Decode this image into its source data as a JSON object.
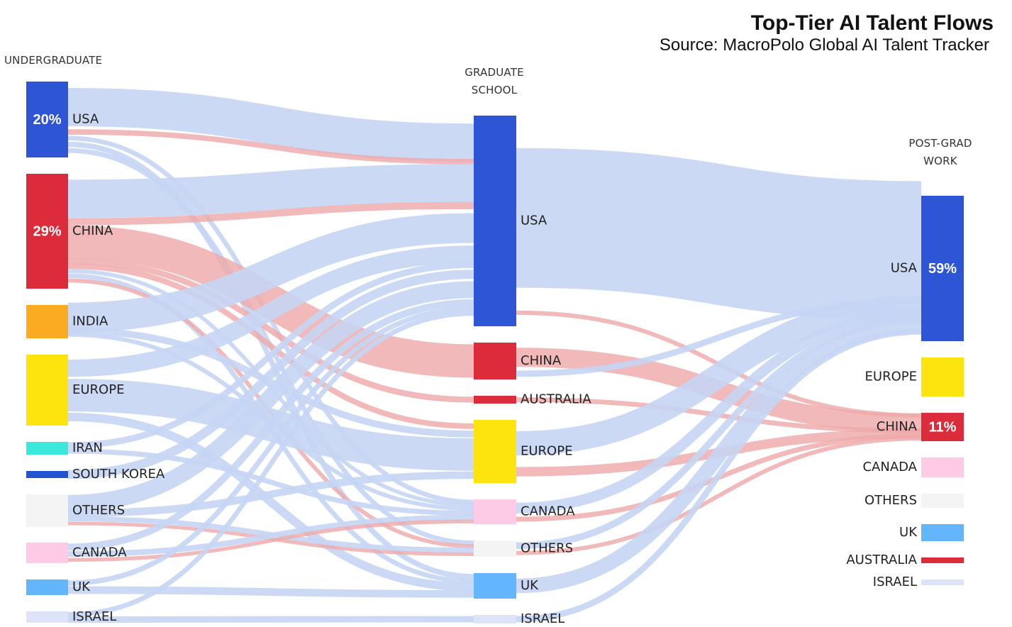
{
  "title": "Top-Tier AI Talent Flows",
  "subtitle": "Source: MacroPolo Global AI Talent Tracker",
  "columns": {
    "undergrad": "UNDERGRADUATE",
    "grad_line1": "GRADUATE",
    "grad_line2": "SCHOOL",
    "work_line1": "POST-GRAD",
    "work_line2": "WORK"
  },
  "colors": {
    "usa": "#2d55d6",
    "china": "#dc2c3c",
    "india": "#fbab22",
    "europe": "#fde40e",
    "iran": "#3ae8dc",
    "south_korea": "#2353d0",
    "others": "#f4f4f4",
    "canada": "#fdcbe6",
    "uk": "#63b6fb",
    "israel": "#dde4f8",
    "australia": "#dc2c3c",
    "flow_general": "#c5d5f4",
    "flow_china": "#eeaaaa"
  },
  "undergraduate": [
    {
      "id": "u_usa",
      "label": "USA",
      "pct": "20%",
      "color": "usa"
    },
    {
      "id": "u_china",
      "label": "CHINA",
      "pct": "29%",
      "color": "china"
    },
    {
      "id": "u_india",
      "label": "INDIA",
      "pct": "",
      "color": "india"
    },
    {
      "id": "u_europe",
      "label": "EUROPE",
      "pct": "",
      "color": "europe"
    },
    {
      "id": "u_iran",
      "label": "IRAN",
      "pct": "",
      "color": "iran"
    },
    {
      "id": "u_skorea",
      "label": "SOUTH KOREA",
      "pct": "",
      "color": "south_korea"
    },
    {
      "id": "u_others",
      "label": "OTHERS",
      "pct": "",
      "color": "others"
    },
    {
      "id": "u_canada",
      "label": "CANADA",
      "pct": "",
      "color": "canada"
    },
    {
      "id": "u_uk",
      "label": "UK",
      "pct": "",
      "color": "uk"
    },
    {
      "id": "u_israel",
      "label": "ISRAEL",
      "pct": "",
      "color": "israel"
    }
  ],
  "graduate_school": [
    {
      "id": "g_usa",
      "label": "USA",
      "color": "usa"
    },
    {
      "id": "g_china",
      "label": "CHINA",
      "color": "china"
    },
    {
      "id": "g_australia",
      "label": "AUSTRALIA",
      "color": "australia"
    },
    {
      "id": "g_europe",
      "label": "EUROPE",
      "color": "europe"
    },
    {
      "id": "g_canada",
      "label": "CANADA",
      "color": "canada"
    },
    {
      "id": "g_others",
      "label": "OTHERS",
      "color": "others"
    },
    {
      "id": "g_uk",
      "label": "UK",
      "color": "uk"
    },
    {
      "id": "g_israel",
      "label": "ISRAEL",
      "color": "israel"
    }
  ],
  "post_grad_work": [
    {
      "id": "w_usa",
      "label": "USA",
      "pct": "59%",
      "color": "usa"
    },
    {
      "id": "w_europe",
      "label": "EUROPE",
      "pct": "",
      "color": "europe"
    },
    {
      "id": "w_china",
      "label": "CHINA",
      "pct": "11%",
      "color": "china"
    },
    {
      "id": "w_canada",
      "label": "CANADA",
      "pct": "",
      "color": "canada"
    },
    {
      "id": "w_others",
      "label": "OTHERS",
      "pct": "",
      "color": "others"
    },
    {
      "id": "w_uk",
      "label": "UK",
      "pct": "",
      "color": "uk"
    },
    {
      "id": "w_australia",
      "label": "AUSTRALIA",
      "pct": "",
      "color": "australia"
    },
    {
      "id": "w_israel",
      "label": "ISRAEL",
      "pct": "",
      "color": "israel"
    }
  ],
  "flows": [
    {
      "from": "u_usa",
      "to": "g_usa",
      "weight": 14,
      "color": "flow_general"
    },
    {
      "from": "u_usa",
      "to": "g_usa",
      "weight": 2,
      "color": "flow_china"
    },
    {
      "from": "u_usa",
      "to": "g_canada",
      "weight": 2,
      "color": "flow_general"
    },
    {
      "from": "u_usa",
      "to": "g_uk",
      "weight": 2,
      "color": "flow_general"
    },
    {
      "from": "u_usa",
      "to": "g_others",
      "weight": 2,
      "color": "flow_general"
    },
    {
      "from": "u_china",
      "to": "g_usa",
      "weight": 16,
      "color": "flow_general"
    },
    {
      "from": "u_china",
      "to": "g_usa",
      "weight": 3,
      "color": "flow_china"
    },
    {
      "from": "u_china",
      "to": "g_china",
      "weight": 14,
      "color": "flow_china"
    },
    {
      "from": "u_china",
      "to": "g_australia",
      "weight": 2,
      "color": "flow_china"
    },
    {
      "from": "u_china",
      "to": "g_europe",
      "weight": 2,
      "color": "flow_china"
    },
    {
      "from": "u_china",
      "to": "g_canada",
      "weight": 2,
      "color": "flow_general"
    },
    {
      "from": "u_china",
      "to": "g_uk",
      "weight": 2,
      "color": "flow_general"
    },
    {
      "from": "u_china",
      "to": "g_others",
      "weight": 2,
      "color": "flow_china"
    },
    {
      "from": "u_india",
      "to": "g_usa",
      "weight": 16,
      "color": "flow_general"
    },
    {
      "from": "u_india",
      "to": "g_europe",
      "weight": 3,
      "color": "flow_general"
    },
    {
      "from": "u_india",
      "to": "g_canada",
      "weight": 3,
      "color": "flow_general"
    },
    {
      "from": "u_europe",
      "to": "g_usa",
      "weight": 6,
      "color": "flow_general"
    },
    {
      "from": "u_europe",
      "to": "g_europe",
      "weight": 10,
      "color": "flow_general"
    },
    {
      "from": "u_europe",
      "to": "g_uk",
      "weight": 3,
      "color": "flow_general"
    },
    {
      "from": "u_iran",
      "to": "g_usa",
      "weight": 3,
      "color": "flow_general"
    },
    {
      "from": "u_iran",
      "to": "g_canada",
      "weight": 3,
      "color": "flow_general"
    },
    {
      "from": "u_skorea",
      "to": "g_usa",
      "weight": 5,
      "color": "flow_general"
    },
    {
      "from": "u_others",
      "to": "g_usa",
      "weight": 8,
      "color": "flow_general"
    },
    {
      "from": "u_others",
      "to": "g_europe",
      "weight": 3,
      "color": "flow_general"
    },
    {
      "from": "u_others",
      "to": "g_others",
      "weight": 3,
      "color": "flow_general"
    },
    {
      "from": "u_others",
      "to": "g_others",
      "weight": 2,
      "color": "flow_china"
    },
    {
      "from": "u_canada",
      "to": "g_usa",
      "weight": 3,
      "color": "flow_general"
    },
    {
      "from": "u_canada",
      "to": "g_canada",
      "weight": 3,
      "color": "flow_general"
    },
    {
      "from": "u_canada",
      "to": "g_canada",
      "weight": 2,
      "color": "flow_china"
    },
    {
      "from": "u_uk",
      "to": "g_usa",
      "weight": 2,
      "color": "flow_general"
    },
    {
      "from": "u_uk",
      "to": "g_uk",
      "weight": 3,
      "color": "flow_general"
    },
    {
      "from": "u_israel",
      "to": "g_usa",
      "weight": 2,
      "color": "flow_general"
    },
    {
      "from": "u_israel",
      "to": "g_israel",
      "weight": 2,
      "color": "flow_general"
    },
    {
      "from": "g_usa",
      "to": "w_usa",
      "weight": 60,
      "color": "flow_general"
    },
    {
      "from": "g_usa",
      "to": "w_china",
      "weight": 2,
      "color": "flow_china"
    },
    {
      "from": "g_china",
      "to": "w_china",
      "weight": 10,
      "color": "flow_china"
    },
    {
      "from": "g_china",
      "to": "w_usa",
      "weight": 3,
      "color": "flow_general"
    },
    {
      "from": "g_australia",
      "to": "w_china",
      "weight": 2,
      "color": "flow_china"
    },
    {
      "from": "g_europe",
      "to": "w_usa",
      "weight": 5,
      "color": "flow_general"
    },
    {
      "from": "g_europe",
      "to": "w_china",
      "weight": 2,
      "color": "flow_china"
    },
    {
      "from": "g_canada",
      "to": "w_usa",
      "weight": 4,
      "color": "flow_general"
    },
    {
      "from": "g_canada",
      "to": "w_china",
      "weight": 2,
      "color": "flow_china"
    },
    {
      "from": "g_others",
      "to": "w_usa",
      "weight": 3,
      "color": "flow_general"
    },
    {
      "from": "g_others",
      "to": "w_china",
      "weight": 2,
      "color": "flow_china"
    },
    {
      "from": "g_uk",
      "to": "w_usa",
      "weight": 4,
      "color": "flow_general"
    },
    {
      "from": "g_israel",
      "to": "w_usa",
      "weight": 3,
      "color": "flow_general"
    }
  ]
}
